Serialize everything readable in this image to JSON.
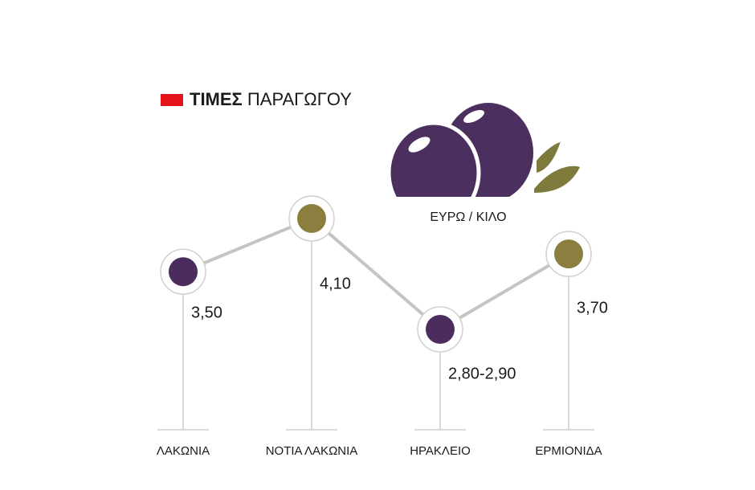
{
  "chart_data": {
    "type": "line",
    "title": {
      "bold": "ΤΙΜΕΣ",
      "rest": "ΠΑΡΑΓΩΓΟΥ"
    },
    "unit_label": "ΕΥΡΩ / ΚΙΛΟ",
    "categories": [
      "ΛΑΚΩΝΙΑ",
      "ΝΟΤΙΑ ΛΑΚΩΝΙΑ",
      "ΗΡΑΚΛΕΙΟ",
      "ΕΡΜΙΟΝΙΔΑ"
    ],
    "values": [
      3.5,
      4.1,
      2.85,
      3.7
    ],
    "value_labels": [
      "3,50",
      "4,10",
      "2,80-2,90",
      "3,70"
    ],
    "point_colors": [
      "#4a2d5e",
      "#8a7f3f",
      "#4a2d5e",
      "#8a7f3f"
    ],
    "line_color": "#c4c4c4",
    "accent_color": "#e3121b"
  }
}
